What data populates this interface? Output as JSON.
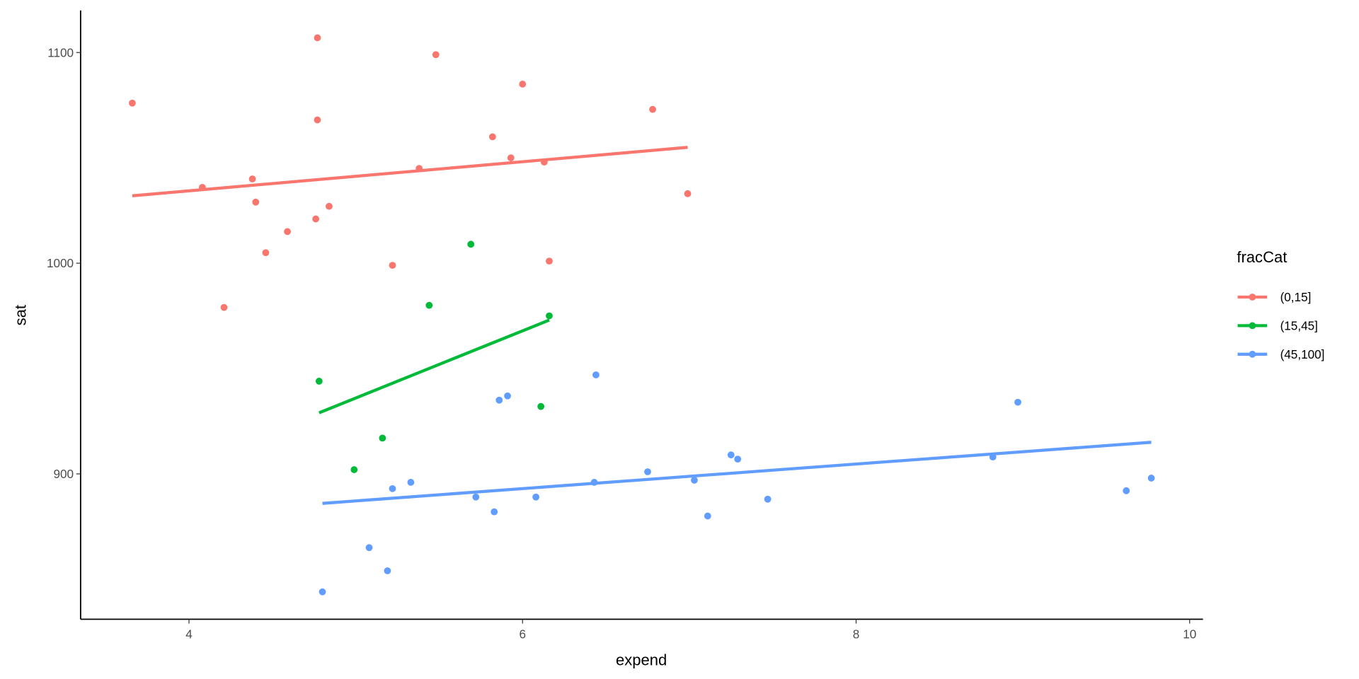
{
  "chart_data": {
    "type": "scatter",
    "xlabel": "expend",
    "ylabel": "sat",
    "xlim": [
      3.35,
      10.08
    ],
    "ylim": [
      831,
      1120
    ],
    "x_ticks": [
      4,
      6,
      8,
      10
    ],
    "y_ticks": [
      900,
      1000,
      1100
    ],
    "grid": false,
    "legend": {
      "title": "fracCat",
      "placement": "right"
    },
    "series": [
      {
        "name": "(0,15]",
        "color": "#F8766D",
        "points": [
          [
            3.66,
            1076
          ],
          [
            4.08,
            1036
          ],
          [
            4.21,
            979
          ],
          [
            4.38,
            1040
          ],
          [
            4.4,
            1029
          ],
          [
            4.46,
            1005
          ],
          [
            4.59,
            1015
          ],
          [
            4.76,
            1021
          ],
          [
            4.77,
            1107
          ],
          [
            4.77,
            1068
          ],
          [
            4.84,
            1027
          ],
          [
            5.22,
            999
          ],
          [
            5.38,
            1045
          ],
          [
            5.48,
            1099
          ],
          [
            5.82,
            1060
          ],
          [
            5.93,
            1050
          ],
          [
            6.0,
            1085
          ],
          [
            6.13,
            1048
          ],
          [
            6.16,
            1001
          ],
          [
            6.78,
            1073
          ],
          [
            6.99,
            1033
          ]
        ],
        "fit": [
          [
            3.66,
            1032
          ],
          [
            6.99,
            1055
          ]
        ]
      },
      {
        "name": "(15,45]",
        "color": "#00BA38",
        "points": [
          [
            4.78,
            944
          ],
          [
            4.99,
            902
          ],
          [
            5.16,
            917
          ],
          [
            5.44,
            980
          ],
          [
            5.69,
            1009
          ],
          [
            6.11,
            932
          ],
          [
            6.16,
            975
          ]
        ],
        "fit": [
          [
            4.78,
            929
          ],
          [
            6.16,
            973
          ]
        ]
      },
      {
        "name": "(45,100]",
        "color": "#619CFF",
        "points": [
          [
            4.8,
            844
          ],
          [
            5.08,
            865
          ],
          [
            5.19,
            854
          ],
          [
            5.22,
            893
          ],
          [
            5.33,
            896
          ],
          [
            5.72,
            889
          ],
          [
            5.83,
            882
          ],
          [
            5.86,
            935
          ],
          [
            5.91,
            937
          ],
          [
            6.08,
            889
          ],
          [
            6.43,
            896
          ],
          [
            6.44,
            947
          ],
          [
            6.75,
            901
          ],
          [
            7.03,
            897
          ],
          [
            7.11,
            880
          ],
          [
            7.25,
            909
          ],
          [
            7.29,
            907
          ],
          [
            7.47,
            888
          ],
          [
            8.82,
            908
          ],
          [
            8.97,
            934
          ],
          [
            9.62,
            892
          ],
          [
            9.77,
            898
          ]
        ],
        "fit": [
          [
            4.8,
            886
          ],
          [
            9.77,
            915
          ]
        ]
      }
    ]
  }
}
